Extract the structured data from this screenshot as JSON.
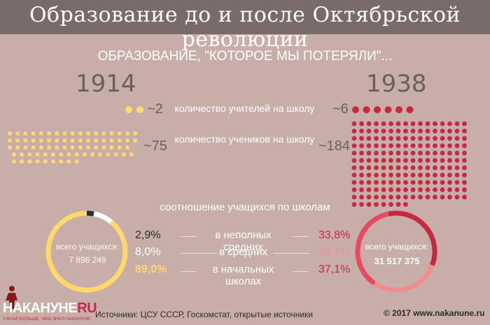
{
  "header": {
    "title": "Образование до и после Октябрьской революции"
  },
  "subtitle": "ОБРАЗОВАНИЕ, \"КОТОРОЕ МЫ ПОТЕРЯЛИ\"...",
  "year_left": "1914",
  "year_right": "1938",
  "teachers": {
    "label": "количество учителей на школу",
    "left_value": "~2",
    "right_value": "~6",
    "left_count": 2,
    "right_count": 6
  },
  "students": {
    "label": "количество учеников на школу",
    "left_value": "~75",
    "right_value": "~184",
    "left_count": 75,
    "right_count": 184
  },
  "ratio_title": "соотношение учащихся по школам",
  "left_total": {
    "label": "всего учащихся:",
    "value": "7 896 249"
  },
  "right_total": {
    "label": "всего учащихся:",
    "value": "31 517 375"
  },
  "rows": [
    {
      "label": "в неполных средних",
      "left": "2,9%",
      "right": "33,8%"
    },
    {
      "label": "в средних",
      "left": "8,0%",
      "right": "28,7%"
    },
    {
      "label": "в начальных школах",
      "left": "89,0%",
      "right": "37,1%"
    }
  ],
  "donut_left": {
    "segments": [
      2.9,
      8.0,
      89.0
    ],
    "colors": [
      "#2b2b2b",
      "#ffffff",
      "#ffd86b"
    ]
  },
  "donut_right": {
    "segments": [
      33.8,
      28.7,
      37.1
    ],
    "colors": [
      "#c6283f",
      "#f08e8e",
      "#e84a5f"
    ]
  },
  "colors": {
    "yellow": "#ffd86b",
    "red": "#c6283f",
    "background": "#c7aea9",
    "title_bar": "#7a6b6b"
  },
  "logo": {
    "name": "НАКАНУНЕ",
    "suffix": "RU",
    "tagline": "УЗНАЙ БОЛЬШЕ, ЧЕМ ЗНАЛ НАКАНУНЕ"
  },
  "footer": {
    "sources": "Источники: ЦСУ СССР, Госкомстат, открытые источники",
    "copyright": "© 2017 www.nakanune.ru"
  }
}
